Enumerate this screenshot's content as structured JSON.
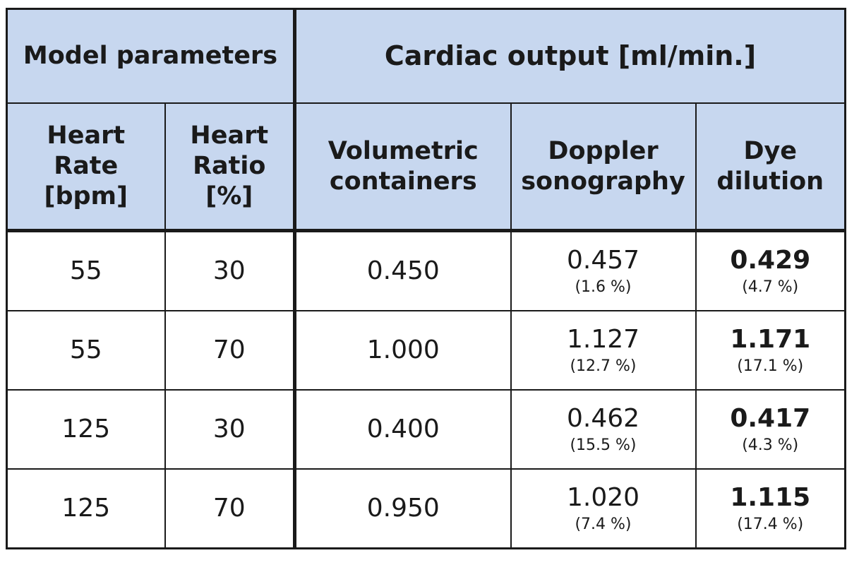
{
  "header": {
    "model_parameters": "Model parameters",
    "cardiac_output": "Cardiac output [ml/min.]",
    "columns": [
      {
        "line1": "Heart",
        "line2": "Rate",
        "line3": "[bpm]"
      },
      {
        "line1": "Heart",
        "line2": "Ratio",
        "line3": "[%]"
      },
      {
        "line1": "Volumetric",
        "line2": "containers"
      },
      {
        "line1": "Doppler",
        "line2": "sonography"
      },
      {
        "line1": "Dye",
        "line2": "dilution"
      }
    ]
  },
  "rows": [
    {
      "heart_rate": "55",
      "heart_ratio": "30",
      "volumetric": "0.450",
      "doppler": "0.457",
      "doppler_pct": "(1.6 %)",
      "dye": "0.429",
      "dye_pct": "(4.7 %)"
    },
    {
      "heart_rate": "55",
      "heart_ratio": "70",
      "volumetric": "1.000",
      "doppler": "1.127",
      "doppler_pct": "(12.7 %)",
      "dye": "1.171",
      "dye_pct": "(17.1 %)"
    },
    {
      "heart_rate": "125",
      "heart_ratio": "30",
      "volumetric": "0.400",
      "doppler": "0.462",
      "doppler_pct": "(15.5 %)",
      "dye": "0.417",
      "dye_pct": "(4.3 %)"
    },
    {
      "heart_rate": "125",
      "heart_ratio": "70",
      "volumetric": "0.950",
      "doppler": "1.020",
      "doppler_pct": "(7.4 %)",
      "dye": "1.115",
      "dye_pct": "(17.4 %)"
    }
  ]
}
